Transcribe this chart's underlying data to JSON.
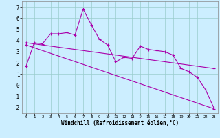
{
  "xlabel": "Windchill (Refroidissement éolien,°C)",
  "bg_color": "#cceeff",
  "line_color": "#aa00aa",
  "grid_color": "#99cccc",
  "xlim": [
    -0.5,
    23.5
  ],
  "ylim": [
    -2.5,
    7.5
  ],
  "xticks": [
    0,
    1,
    2,
    3,
    4,
    5,
    6,
    7,
    8,
    9,
    10,
    11,
    12,
    13,
    14,
    15,
    16,
    17,
    18,
    19,
    20,
    21,
    22,
    23
  ],
  "yticks": [
    -2,
    -1,
    0,
    1,
    2,
    3,
    4,
    5,
    6,
    7
  ],
  "line1_x": [
    0,
    1,
    2,
    3,
    4,
    5,
    6,
    7,
    8,
    9,
    10,
    11,
    12,
    13,
    14,
    15,
    16,
    17,
    18,
    19,
    20,
    21,
    22,
    23
  ],
  "line1_y": [
    1.7,
    3.8,
    3.7,
    4.6,
    4.6,
    4.7,
    4.5,
    6.8,
    5.4,
    4.1,
    3.6,
    2.1,
    2.5,
    2.4,
    3.5,
    3.2,
    3.1,
    3.0,
    2.7,
    1.5,
    1.2,
    0.7,
    -0.4,
    -2.0
  ],
  "line2_x": [
    0,
    23
  ],
  "line2_y": [
    3.8,
    1.5
  ],
  "line3_x": [
    0,
    23
  ],
  "line3_y": [
    3.6,
    -2.1
  ],
  "marker": "+"
}
